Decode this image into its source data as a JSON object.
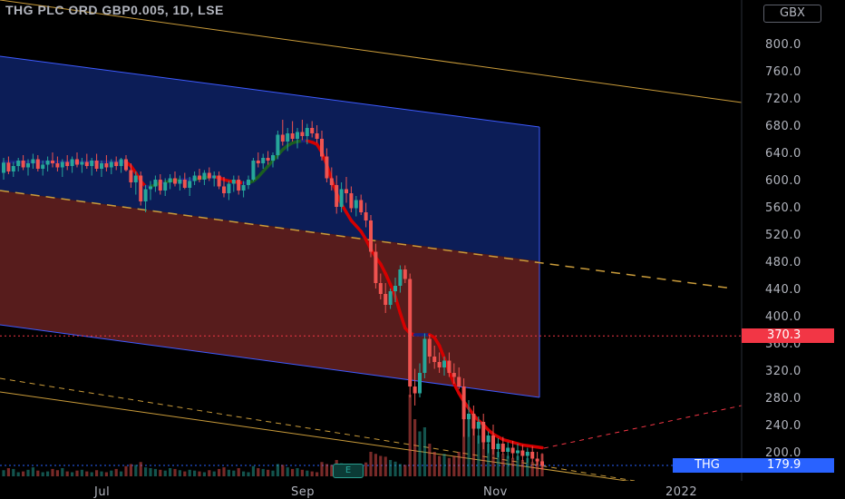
{
  "header": {
    "title": "THG PLC ORD GBP0.005, 1D, LSE",
    "currency": "GBX"
  },
  "price_tags": {
    "level_label": "370.3",
    "symbol": "THG",
    "last_price": "179.9"
  },
  "events": {
    "earnings_label": "E"
  },
  "colors": {
    "up": "#26a69a",
    "down": "#ef5350",
    "ma_up": "#1b5e20",
    "ma_down": "#d50000",
    "channel_upper_fill": "#0d1f5c",
    "channel_lower_fill": "#5c1e1e",
    "channel_border": "#3d5afe",
    "trend_line": "#c99b3a",
    "level_line": "#f23645",
    "last_price_line": "#2962ff"
  },
  "chart_data": {
    "type": "candlestick",
    "title": "THG PLC ORD GBP0.005, 1D, LSE",
    "currency": "GBX",
    "ylim": [
      175,
      830
    ],
    "y_ticks": [
      200,
      240,
      280,
      320,
      360,
      400,
      440,
      480,
      520,
      560,
      600,
      640,
      680,
      720,
      760,
      800
    ],
    "y_tick_labels": [
      "200.0",
      "240.0",
      "280.0",
      "320.0",
      "360.0",
      "400.0",
      "440.0",
      "480.0",
      "520.0",
      "560.0",
      "600.0",
      "640.0",
      "680.0",
      "720.0",
      "760.0",
      "800.0"
    ],
    "x_tick_labels": [
      "Jul",
      "Sep",
      "Nov",
      "2022"
    ],
    "level_marker": 370.3,
    "last_price": 179.9,
    "candles": [
      [
        610,
        632,
        600,
        625
      ],
      [
        625,
        634,
        608,
        612
      ],
      [
        612,
        626,
        604,
        620
      ],
      [
        620,
        632,
        612,
        628
      ],
      [
        628,
        636,
        614,
        618
      ],
      [
        618,
        630,
        606,
        624
      ],
      [
        624,
        638,
        616,
        630
      ],
      [
        630,
        636,
        612,
        616
      ],
      [
        616,
        628,
        606,
        622
      ],
      [
        622,
        634,
        612,
        628
      ],
      [
        628,
        640,
        618,
        624
      ],
      [
        624,
        634,
        612,
        618
      ],
      [
        618,
        630,
        604,
        626
      ],
      [
        626,
        636,
        614,
        620
      ],
      [
        620,
        634,
        610,
        630
      ],
      [
        630,
        640,
        618,
        622
      ],
      [
        622,
        632,
        610,
        626
      ],
      [
        626,
        638,
        616,
        620
      ],
      [
        620,
        632,
        606,
        628
      ],
      [
        628,
        638,
        612,
        616
      ],
      [
        616,
        628,
        604,
        624
      ],
      [
        624,
        636,
        612,
        618
      ],
      [
        618,
        630,
        608,
        626
      ],
      [
        626,
        634,
        614,
        620
      ],
      [
        620,
        632,
        610,
        630
      ],
      [
        630,
        636,
        612,
        614
      ],
      [
        614,
        624,
        588,
        596
      ],
      [
        596,
        612,
        578,
        606
      ],
      [
        606,
        612,
        562,
        568
      ],
      [
        568,
        592,
        552,
        586
      ],
      [
        586,
        598,
        570,
        590
      ],
      [
        590,
        606,
        582,
        600
      ],
      [
        600,
        608,
        578,
        584
      ],
      [
        584,
        602,
        576,
        596
      ],
      [
        596,
        608,
        586,
        602
      ],
      [
        602,
        612,
        590,
        594
      ],
      [
        594,
        606,
        584,
        600
      ],
      [
        600,
        610,
        586,
        588
      ],
      [
        588,
        604,
        576,
        598
      ],
      [
        598,
        612,
        592,
        606
      ],
      [
        606,
        616,
        596,
        600
      ],
      [
        600,
        614,
        592,
        610
      ],
      [
        610,
        618,
        598,
        602
      ],
      [
        602,
        612,
        590,
        606
      ],
      [
        606,
        612,
        586,
        590
      ],
      [
        590,
        604,
        574,
        580
      ],
      [
        580,
        598,
        570,
        594
      ],
      [
        594,
        606,
        582,
        600
      ],
      [
        600,
        606,
        578,
        584
      ],
      [
        584,
        598,
        574,
        592
      ],
      [
        592,
        606,
        586,
        600
      ],
      [
        600,
        632,
        598,
        628
      ],
      [
        628,
        640,
        618,
        624
      ],
      [
        624,
        638,
        616,
        632
      ],
      [
        632,
        642,
        622,
        628
      ],
      [
        628,
        640,
        618,
        636
      ],
      [
        636,
        672,
        630,
        666
      ],
      [
        666,
        688,
        650,
        656
      ],
      [
        656,
        676,
        642,
        668
      ],
      [
        668,
        686,
        656,
        660
      ],
      [
        660,
        676,
        646,
        670
      ],
      [
        670,
        688,
        658,
        664
      ],
      [
        664,
        682,
        652,
        676
      ],
      [
        676,
        686,
        662,
        668
      ],
      [
        668,
        680,
        654,
        660
      ],
      [
        660,
        672,
        628,
        634
      ],
      [
        634,
        646,
        596,
        602
      ],
      [
        602,
        618,
        584,
        592
      ],
      [
        592,
        606,
        550,
        560
      ],
      [
        560,
        596,
        552,
        586
      ],
      [
        586,
        604,
        566,
        580
      ],
      [
        580,
        590,
        552,
        558
      ],
      [
        558,
        576,
        546,
        570
      ],
      [
        570,
        578,
        548,
        552
      ],
      [
        552,
        566,
        530,
        540
      ],
      [
        540,
        548,
        486,
        494
      ],
      [
        494,
        506,
        440,
        448
      ],
      [
        448,
        462,
        424,
        432
      ],
      [
        432,
        448,
        404,
        416
      ],
      [
        416,
        440,
        410,
        436
      ],
      [
        436,
        456,
        420,
        444
      ],
      [
        444,
        474,
        434,
        468
      ],
      [
        468,
        474,
        448,
        454
      ],
      [
        454,
        462,
        280,
        296
      ],
      [
        296,
        322,
        268,
        286
      ],
      [
        286,
        330,
        280,
        316
      ],
      [
        316,
        374,
        308,
        366
      ],
      [
        366,
        372,
        330,
        340
      ],
      [
        340,
        356,
        322,
        332
      ],
      [
        332,
        346,
        316,
        324
      ],
      [
        324,
        340,
        312,
        334
      ],
      [
        334,
        346,
        310,
        316
      ],
      [
        316,
        330,
        300,
        310
      ],
      [
        310,
        324,
        292,
        296
      ],
      [
        296,
        308,
        222,
        248
      ],
      [
        248,
        276,
        222,
        256
      ],
      [
        256,
        268,
        224,
        234
      ],
      [
        234,
        252,
        212,
        244
      ],
      [
        244,
        256,
        204,
        214
      ],
      [
        214,
        230,
        198,
        224
      ],
      [
        224,
        240,
        196,
        204
      ],
      [
        204,
        220,
        192,
        212
      ],
      [
        212,
        222,
        196,
        200
      ],
      [
        200,
        214,
        190,
        206
      ],
      [
        206,
        216,
        190,
        198
      ],
      [
        198,
        212,
        188,
        202
      ],
      [
        202,
        210,
        186,
        194
      ],
      [
        194,
        206,
        184,
        200
      ],
      [
        200,
        208,
        184,
        190
      ],
      [
        190,
        200,
        180,
        186
      ],
      [
        186,
        198,
        174,
        180
      ]
    ],
    "volume_relative": [
      0.15,
      0.2,
      0.18,
      0.1,
      0.12,
      0.16,
      0.22,
      0.14,
      0.1,
      0.12,
      0.18,
      0.15,
      0.2,
      0.12,
      0.1,
      0.14,
      0.16,
      0.12,
      0.1,
      0.15,
      0.12,
      0.1,
      0.14,
      0.18,
      0.12,
      0.25,
      0.3,
      0.28,
      0.35,
      0.22,
      0.2,
      0.18,
      0.16,
      0.14,
      0.2,
      0.18,
      0.15,
      0.12,
      0.16,
      0.14,
      0.12,
      0.1,
      0.15,
      0.12,
      0.18,
      0.22,
      0.16,
      0.14,
      0.2,
      0.12,
      0.1,
      0.25,
      0.2,
      0.18,
      0.16,
      0.14,
      0.3,
      0.28,
      0.22,
      0.18,
      0.2,
      0.16,
      0.14,
      0.12,
      0.1,
      0.35,
      0.3,
      0.28,
      0.4,
      0.32,
      0.26,
      0.3,
      0.22,
      0.28,
      0.34,
      0.6,
      0.55,
      0.5,
      0.48,
      0.4,
      0.36,
      0.3,
      0.28,
      2.0,
      1.4,
      1.1,
      1.2,
      0.8,
      0.6,
      0.5,
      0.55,
      0.45,
      0.5,
      0.6,
      2.2,
      1.5,
      1.2,
      1.0,
      0.9,
      0.8,
      0.7,
      0.6,
      0.55,
      0.5,
      0.45,
      0.5,
      0.4,
      0.45,
      0.35,
      0.4,
      0.55
    ],
    "moving_average": [
      626,
      626,
      626,
      626,
      626,
      626,
      626,
      626,
      626,
      626,
      626,
      626,
      626,
      626,
      626,
      626,
      626,
      626,
      626,
      626,
      626,
      626,
      626,
      626,
      626,
      626,
      620,
      610,
      598,
      590,
      590,
      592,
      596,
      596,
      598,
      599,
      600,
      600,
      600,
      600,
      602,
      603,
      604,
      604,
      603,
      600,
      598,
      597,
      596,
      595,
      595,
      598,
      604,
      612,
      620,
      628,
      636,
      644,
      650,
      654,
      656,
      657,
      657,
      655,
      652,
      640,
      622,
      600,
      580,
      564,
      552,
      540,
      532,
      524,
      512,
      498,
      486,
      476,
      462,
      446,
      428,
      404,
      382,
      374,
      372,
      372,
      372,
      372,
      368,
      356,
      338,
      318,
      300,
      286,
      274,
      264,
      254,
      246,
      240,
      232,
      226,
      222,
      218,
      216,
      214,
      212,
      210,
      209,
      208,
      207,
      206
    ]
  }
}
